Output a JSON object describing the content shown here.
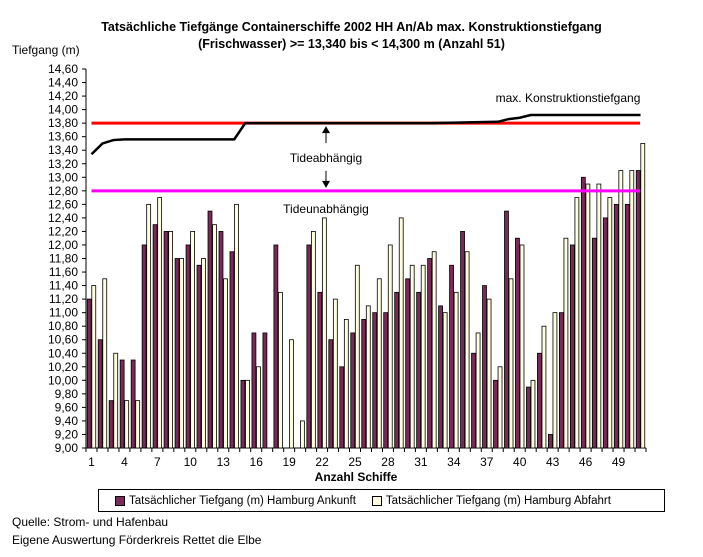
{
  "chart_data": {
    "type": "bar",
    "title_line1": "Tatsächliche Tiefgänge Containerschiffe 2002 HH An/Ab max. Konstruktionstiefgang",
    "title_line2": "(Frischwasser) >= 13,340 bis < 14,300 m (Anzahl 51)",
    "ylabel": "Tiefgang (m)",
    "xlabel": "Anzahl Schiffe",
    "ylim": [
      9.0,
      14.6
    ],
    "ytick_step": 0.2,
    "xtick_labels": [
      "1",
      "4",
      "7",
      "10",
      "13",
      "16",
      "19",
      "22",
      "25",
      "28",
      "31",
      "34",
      "37",
      "40",
      "43",
      "46",
      "49"
    ],
    "xtick_positions": [
      1,
      4,
      7,
      10,
      13,
      16,
      19,
      22,
      25,
      28,
      31,
      34,
      37,
      40,
      43,
      46,
      49
    ],
    "n_ships": 51,
    "series": [
      {
        "name": "Tatsächlicher Tiefgang (m) Hamburg Ankunft",
        "color": "#7b2957",
        "values": [
          11.2,
          10.6,
          9.7,
          10.3,
          10.3,
          12.0,
          12.3,
          12.2,
          11.8,
          12.0,
          11.7,
          12.5,
          12.2,
          11.9,
          10.0,
          10.7,
          10.7,
          12.0,
          9.0,
          9.0,
          12.0,
          11.3,
          10.6,
          10.2,
          10.7,
          10.9,
          11.0,
          11.0,
          11.3,
          11.5,
          11.3,
          11.8,
          11.1,
          11.7,
          12.2,
          10.4,
          11.4,
          10.0,
          12.5,
          12.1,
          9.9,
          10.4,
          9.2,
          11.0,
          12.0,
          13.0,
          12.1,
          12.4,
          12.6,
          12.6,
          13.1
        ]
      },
      {
        "name": "Tatsächlicher Tiefgang (m) Hamburg Abfahrt",
        "color": "#ffffe0",
        "values": [
          11.4,
          11.5,
          10.4,
          9.7,
          9.7,
          12.6,
          12.7,
          12.2,
          11.8,
          12.2,
          11.8,
          12.3,
          11.5,
          12.6,
          10.0,
          10.2,
          9.0,
          11.3,
          10.6,
          9.4,
          12.2,
          12.4,
          11.2,
          10.9,
          11.7,
          11.1,
          11.5,
          12.0,
          12.4,
          11.7,
          11.7,
          11.9,
          11.0,
          11.3,
          11.9,
          10.7,
          11.2,
          10.2,
          11.5,
          12.0,
          10.0,
          10.8,
          11.0,
          12.1,
          12.7,
          12.9,
          12.9,
          12.7,
          13.1,
          13.1,
          13.5
        ]
      }
    ],
    "lines": {
      "konstruktion_label": "max. Konstruktionstiefgang",
      "konstruktion_color": "#000000",
      "konstruktion_points": [
        [
          1,
          13.34
        ],
        [
          2,
          13.5
        ],
        [
          3,
          13.55
        ],
        [
          4,
          13.56
        ],
        [
          14,
          13.56
        ],
        [
          15,
          13.8
        ],
        [
          32,
          13.8
        ],
        [
          38,
          13.82
        ],
        [
          39,
          13.86
        ],
        [
          40,
          13.88
        ],
        [
          41,
          13.92
        ],
        [
          51,
          13.92
        ]
      ],
      "red_level": 13.8,
      "red_color": "#ff0000",
      "magenta_level": 12.8,
      "magenta_color": "#ff00ff",
      "tide_label": "Tideabhängig",
      "untide_label": "Tideunabhängig"
    }
  },
  "legend": {
    "arrival": "Tatsächlicher Tiefgang (m) Hamburg Ankunft",
    "departure": "Tatsächlicher Tiefgang (m) Hamburg Abfahrt"
  },
  "footer": {
    "source": "Quelle: Strom- und Hafenbau",
    "author": "Eigene Auswertung Förderkreis Rettet die Elbe"
  }
}
